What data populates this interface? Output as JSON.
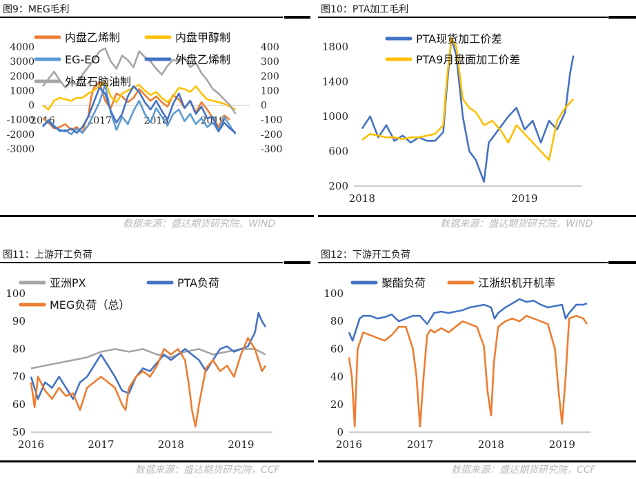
{
  "headers": {
    "c9": "图9：MEG毛利",
    "c10": "图10：PTA加工毛利",
    "c11": "图11：上游开工负荷",
    "c12": "图12：下游开工负荷"
  },
  "sources": {
    "top_left": "数据来源：盛达期货研究院，WIND",
    "top_right": "数据来源：盛达期货研究院，WIND",
    "bottom_left": "数据来源：盛达期货研究院，CCF",
    "bottom_right": "数据来源：盛达期货研究院，CCF"
  },
  "chart_data": [
    {
      "id": "c9",
      "type": "line",
      "x_ticks": [
        "2016",
        "2017",
        "2018",
        "2019"
      ],
      "x_range": [
        2016.0,
        2019.65
      ],
      "y_left_ticks": [
        "4000",
        "3000",
        "2000",
        "1000",
        "0",
        "-1000",
        "-2000",
        "-3000"
      ],
      "y_left_range": [
        -3000,
        4000
      ],
      "y_right_ticks": [
        "400",
        "300",
        "200",
        "100",
        "0",
        "-100",
        "-200",
        "-300"
      ],
      "y_right_range": [
        -300,
        400
      ],
      "series": [
        {
          "name": "内盘乙烯制",
          "color": "#ED7D31",
          "axis": "left",
          "x": [
            2016.0,
            2016.1,
            2016.2,
            2016.3,
            2016.4,
            2016.5,
            2016.6,
            2016.7,
            2016.75,
            2016.8,
            2016.85,
            2016.9,
            2016.95,
            2017.0,
            2017.05,
            2017.1,
            2017.2,
            2017.3,
            2017.4,
            2017.5,
            2017.6,
            2017.7,
            2017.8,
            2017.9,
            2018.0,
            2018.1,
            2018.2,
            2018.3,
            2018.4,
            2018.5,
            2018.6,
            2018.7,
            2018.8,
            2018.9,
            2019.0,
            2019.1,
            2019.2,
            2019.3
          ],
          "y": [
            -900,
            -1200,
            -1600,
            -1500,
            -1300,
            -1700,
            -1500,
            -1900,
            -1200,
            -800,
            500,
            1200,
            1400,
            1600,
            900,
            300,
            -200,
            800,
            600,
            200,
            500,
            1100,
            700,
            300,
            600,
            200,
            -100,
            700,
            400,
            -200,
            300,
            -500,
            200,
            -300,
            -900,
            -1500,
            -700,
            -1000
          ]
        },
        {
          "name": "内盘甲醇制",
          "color": "#FFC000",
          "axis": "left",
          "x": [
            2016.0,
            2016.1,
            2016.2,
            2016.3,
            2016.4,
            2016.5,
            2016.6,
            2016.7,
            2016.8,
            2016.9,
            2017.0,
            2017.1,
            2017.2,
            2017.3,
            2017.4,
            2017.5,
            2017.6,
            2017.7,
            2017.8,
            2017.9,
            2018.0,
            2018.1,
            2018.2,
            2018.3,
            2018.4,
            2018.5,
            2018.6,
            2018.7,
            2018.8,
            2018.9,
            2019.0,
            2019.1,
            2019.2,
            2019.3,
            2019.4
          ],
          "y": [
            0,
            -300,
            300,
            500,
            400,
            300,
            500,
            500,
            800,
            1000,
            1300,
            1600,
            600,
            200,
            800,
            1000,
            1200,
            1400,
            1000,
            700,
            900,
            500,
            200,
            600,
            1200,
            1100,
            900,
            1300,
            800,
            400,
            300,
            200,
            100,
            -100,
            -300
          ]
        },
        {
          "name": "EG-EO",
          "color": "#5B9BD5",
          "axis": "left",
          "x": [
            2016.0,
            2016.1,
            2016.2,
            2016.3,
            2016.4,
            2016.5,
            2016.6,
            2016.7,
            2016.8,
            2016.9,
            2017.0,
            2017.1,
            2017.2,
            2017.3,
            2017.4,
            2017.5,
            2017.6,
            2017.7,
            2017.8,
            2017.9,
            2018.0,
            2018.1,
            2018.2,
            2018.3,
            2018.4,
            2018.5,
            2018.6,
            2018.7,
            2018.8,
            2018.9,
            2019.0,
            2019.1,
            2019.2,
            2019.3,
            2019.4
          ],
          "y": [
            -1500,
            -1000,
            -1400,
            -1800,
            -1700,
            -2000,
            -1600,
            -1900,
            -1400,
            -600,
            200,
            1400,
            -500,
            -1700,
            -800,
            -1300,
            -400,
            300,
            -600,
            -1200,
            -200,
            -800,
            -1400,
            -600,
            -300,
            -1100,
            -600,
            -1300,
            -900,
            -1500,
            -1200,
            -1800,
            -800,
            -1400,
            -2000
          ]
        },
        {
          "name": "外盘乙烯制",
          "color": "#4472C4",
          "axis": "right",
          "x": [
            2016.0,
            2016.1,
            2016.2,
            2016.3,
            2016.4,
            2016.5,
            2016.6,
            2016.7,
            2016.8,
            2016.9,
            2017.0,
            2017.1,
            2017.2,
            2017.3,
            2017.4,
            2017.5,
            2017.6,
            2017.7,
            2017.8,
            2017.9,
            2018.0,
            2018.1,
            2018.2,
            2018.3,
            2018.4,
            2018.5,
            2018.6,
            2018.7,
            2018.8,
            2018.9,
            2019.0,
            2019.1,
            2019.2,
            2019.3,
            2019.4
          ],
          "y": [
            -140,
            -110,
            -150,
            -170,
            -180,
            -160,
            -190,
            -150,
            -80,
            20,
            120,
            80,
            -40,
            -120,
            -60,
            60,
            130,
            90,
            20,
            -30,
            30,
            -40,
            -100,
            10,
            80,
            -20,
            30,
            -60,
            -10,
            -90,
            -80,
            -180,
            -120,
            -160,
            -190
          ]
        },
        {
          "name": "外盘石脑油制",
          "color": "#A5A5A5",
          "axis": "right",
          "x": [
            2016.0,
            2016.1,
            2016.2,
            2016.3,
            2016.4,
            2016.5,
            2016.6,
            2016.7,
            2016.8,
            2016.9,
            2017.0,
            2017.1,
            2017.2,
            2017.3,
            2017.4,
            2017.5,
            2017.6,
            2017.7,
            2017.8,
            2017.9,
            2018.0,
            2018.1,
            2018.2,
            2018.3,
            2018.4,
            2018.5,
            2018.6,
            2018.7,
            2018.8,
            2018.9,
            2019.0,
            2019.1,
            2019.2,
            2019.3,
            2019.4
          ],
          "y": [
            130,
            180,
            230,
            170,
            120,
            160,
            140,
            210,
            260,
            310,
            370,
            390,
            300,
            250,
            340,
            310,
            260,
            370,
            330,
            300,
            250,
            210,
            270,
            310,
            300,
            330,
            260,
            290,
            220,
            170,
            110,
            80,
            40,
            0,
            -60
          ]
        }
      ]
    },
    {
      "id": "c10",
      "type": "line",
      "x_ticks": [
        "2018",
        "2019"
      ],
      "x_range": [
        2017.95,
        2019.35
      ],
      "y_ticks": [
        "1800",
        "1400",
        "1000",
        "600",
        "200"
      ],
      "y_range": [
        200,
        1800
      ],
      "series": [
        {
          "name": "PTA现货加工价差",
          "color": "#4472C4",
          "x": [
            2018.0,
            2018.05,
            2018.1,
            2018.15,
            2018.2,
            2018.25,
            2018.3,
            2018.35,
            2018.4,
            2018.45,
            2018.5,
            2018.52,
            2018.55,
            2018.58,
            2018.62,
            2018.66,
            2018.7,
            2018.75,
            2018.78,
            2018.82,
            2018.86,
            2018.9,
            2018.95,
            2019.0,
            2019.05,
            2019.1,
            2019.15,
            2019.2,
            2019.25,
            2019.28,
            2019.3
          ],
          "y": [
            860,
            1000,
            760,
            900,
            720,
            780,
            700,
            760,
            720,
            720,
            820,
            1300,
            1900,
            1700,
            1000,
            600,
            500,
            250,
            700,
            800,
            900,
            1000,
            1100,
            850,
            950,
            700,
            950,
            850,
            1050,
            1500,
            1700
          ]
        },
        {
          "name": "PTA9月盘面加工价差",
          "color": "#FFC000",
          "x": [
            2018.0,
            2018.05,
            2018.1,
            2018.15,
            2018.2,
            2018.25,
            2018.3,
            2018.35,
            2018.4,
            2018.45,
            2018.5,
            2018.52,
            2018.55,
            2018.58,
            2018.62,
            2018.66,
            2018.7,
            2018.75,
            2018.8,
            2018.85,
            2018.9,
            2018.95,
            2019.0,
            2019.05,
            2019.1,
            2019.15,
            2019.2,
            2019.25,
            2019.3
          ],
          "y": [
            730,
            800,
            780,
            760,
            760,
            740,
            760,
            760,
            780,
            800,
            900,
            1400,
            1900,
            1800,
            1200,
            1100,
            1050,
            900,
            950,
            850,
            700,
            900,
            800,
            700,
            600,
            500,
            950,
            1100,
            1200
          ]
        }
      ]
    },
    {
      "id": "c11",
      "type": "line",
      "x_ticks": [
        "2016",
        "2017",
        "2018",
        "2019"
      ],
      "x_range": [
        2016.0,
        2019.45
      ],
      "y_ticks": [
        "100",
        "90",
        "80",
        "70",
        "60",
        "50"
      ],
      "y_range": [
        50,
        100
      ],
      "series": [
        {
          "name": "亚洲PX",
          "color": "#A5A5A5",
          "x": [
            2016.0,
            2016.2,
            2016.4,
            2016.6,
            2016.8,
            2017.0,
            2017.2,
            2017.4,
            2017.6,
            2017.8,
            2018.0,
            2018.2,
            2018.4,
            2018.6,
            2018.8,
            2019.0,
            2019.2,
            2019.35
          ],
          "y": [
            73,
            74,
            75,
            76,
            77,
            79,
            80,
            79,
            80,
            78,
            77,
            79,
            80,
            78,
            79,
            80,
            80,
            78
          ]
        },
        {
          "name": "PTA负荷",
          "color": "#4472C4",
          "x": [
            2016.0,
            2016.1,
            2016.2,
            2016.3,
            2016.4,
            2016.5,
            2016.6,
            2016.7,
            2016.8,
            2016.9,
            2017.0,
            2017.1,
            2017.2,
            2017.3,
            2017.4,
            2017.5,
            2017.6,
            2017.7,
            2017.8,
            2017.9,
            2018.0,
            2018.1,
            2018.2,
            2018.3,
            2018.4,
            2018.5,
            2018.6,
            2018.7,
            2018.8,
            2018.9,
            2019.0,
            2019.1,
            2019.2,
            2019.25,
            2019.3,
            2019.35
          ],
          "y": [
            70,
            62,
            68,
            66,
            70,
            66,
            62,
            68,
            70,
            74,
            78,
            74,
            70,
            65,
            64,
            70,
            73,
            72,
            75,
            78,
            76,
            78,
            80,
            78,
            76,
            72,
            76,
            80,
            81,
            79,
            80,
            81,
            86,
            93,
            90,
            88
          ]
        },
        {
          "name": "MEG负荷（总）",
          "color": "#ED7D31",
          "x": [
            2016.0,
            2016.05,
            2016.1,
            2016.2,
            2016.3,
            2016.4,
            2016.5,
            2016.6,
            2016.7,
            2016.8,
            2016.9,
            2017.0,
            2017.1,
            2017.2,
            2017.3,
            2017.35,
            2017.4,
            2017.5,
            2017.6,
            2017.7,
            2017.8,
            2017.9,
            2018.0,
            2018.1,
            2018.2,
            2018.25,
            2018.3,
            2018.35,
            2018.4,
            2018.5,
            2018.6,
            2018.7,
            2018.8,
            2018.9,
            2019.0,
            2019.1,
            2019.2,
            2019.3,
            2019.35
          ],
          "y": [
            68,
            59,
            70,
            65,
            62,
            66,
            63,
            64,
            58,
            66,
            68,
            70,
            68,
            66,
            60,
            58,
            66,
            70,
            72,
            70,
            74,
            80,
            78,
            80,
            76,
            68,
            58,
            52,
            60,
            73,
            76,
            72,
            74,
            70,
            78,
            84,
            80,
            72,
            74
          ]
        }
      ]
    },
    {
      "id": "c12",
      "type": "line",
      "x_ticks": [
        "2016",
        "2017",
        "2018",
        "2019"
      ],
      "x_range": [
        2016.0,
        2019.4
      ],
      "y_ticks": [
        "100",
        "80",
        "60",
        "40",
        "20",
        "0"
      ],
      "y_range": [
        0,
        100
      ],
      "series": [
        {
          "name": "聚酯负荷",
          "color": "#4472C4",
          "x": [
            2016.0,
            2016.05,
            2016.1,
            2016.15,
            2016.2,
            2016.3,
            2016.4,
            2016.5,
            2016.6,
            2016.7,
            2016.8,
            2016.9,
            2017.0,
            2017.1,
            2017.2,
            2017.3,
            2017.4,
            2017.5,
            2017.6,
            2017.7,
            2017.8,
            2017.9,
            2018.0,
            2018.05,
            2018.1,
            2018.2,
            2018.3,
            2018.4,
            2018.5,
            2018.6,
            2018.7,
            2018.8,
            2018.9,
            2019.0,
            2019.05,
            2019.1,
            2019.2,
            2019.3,
            2019.35
          ],
          "y": [
            72,
            66,
            74,
            82,
            84,
            84,
            82,
            83,
            85,
            80,
            82,
            84,
            84,
            78,
            86,
            87,
            86,
            87,
            88,
            90,
            91,
            92,
            90,
            82,
            86,
            90,
            93,
            96,
            94,
            95,
            92,
            90,
            91,
            92,
            82,
            86,
            92,
            92,
            93
          ]
        },
        {
          "name": "江浙织机开机率",
          "color": "#ED7D31",
          "x": [
            2016.0,
            2016.04,
            2016.08,
            2016.12,
            2016.2,
            2016.3,
            2016.4,
            2016.5,
            2016.6,
            2016.7,
            2016.8,
            2016.9,
            2016.95,
            2017.0,
            2017.05,
            2017.1,
            2017.15,
            2017.2,
            2017.3,
            2017.4,
            2017.5,
            2017.6,
            2017.7,
            2017.8,
            2017.9,
            2017.95,
            2018.0,
            2018.04,
            2018.1,
            2018.2,
            2018.3,
            2018.4,
            2018.5,
            2018.6,
            2018.7,
            2018.8,
            2018.9,
            2018.95,
            2019.0,
            2019.05,
            2019.1,
            2019.2,
            2019.3,
            2019.35
          ],
          "y": [
            54,
            40,
            4,
            60,
            72,
            70,
            68,
            66,
            70,
            76,
            76,
            60,
            40,
            4,
            40,
            70,
            74,
            72,
            75,
            72,
            76,
            80,
            78,
            76,
            62,
            30,
            12,
            50,
            76,
            80,
            82,
            80,
            84,
            82,
            80,
            78,
            60,
            30,
            6,
            40,
            82,
            84,
            82,
            78
          ]
        }
      ]
    }
  ]
}
